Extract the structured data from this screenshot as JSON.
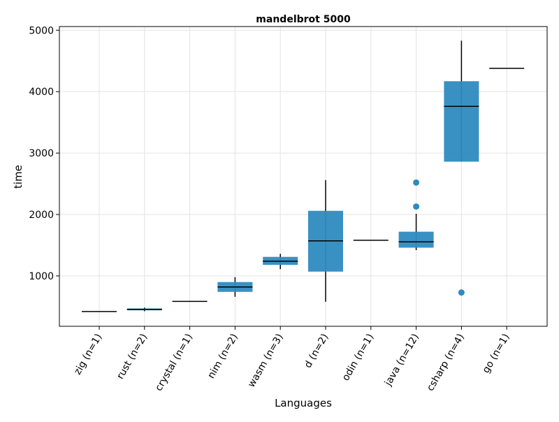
{
  "chart_data": {
    "type": "box",
    "title": "mandelbrot 5000",
    "xlabel": "Languages",
    "ylabel": "time",
    "ylim": [
      180,
      5060
    ],
    "yticks": [
      1000,
      2000,
      3000,
      4000,
      5000
    ],
    "grid": true,
    "box_color": "#2e8bc0",
    "categories": [
      "zig (n=1)",
      "rust (n=2)",
      "crystal (n=1)",
      "nim (n=2)",
      "wasm (n=3)",
      "d (n=2)",
      "odin (n=1)",
      "java (n=12)",
      "csharp (n=4)",
      "go (n=1)"
    ],
    "boxes": [
      {
        "q1": 420,
        "median": 420,
        "q3": 420,
        "whisker_low": 420,
        "whisker_high": 420,
        "outliers": []
      },
      {
        "q1": 440,
        "median": 455,
        "q3": 470,
        "whisker_low": 425,
        "whisker_high": 485,
        "outliers": []
      },
      {
        "q1": 585,
        "median": 585,
        "q3": 585,
        "whisker_low": 585,
        "whisker_high": 585,
        "outliers": []
      },
      {
        "q1": 740,
        "median": 820,
        "q3": 900,
        "whisker_low": 660,
        "whisker_high": 980,
        "outliers": []
      },
      {
        "q1": 1180,
        "median": 1240,
        "q3": 1310,
        "whisker_low": 1110,
        "whisker_high": 1360,
        "outliers": []
      },
      {
        "q1": 1070,
        "median": 1570,
        "q3": 2060,
        "whisker_low": 580,
        "whisker_high": 2560,
        "outliers": []
      },
      {
        "q1": 1580,
        "median": 1580,
        "q3": 1580,
        "whisker_low": 1580,
        "whisker_high": 1580,
        "outliers": []
      },
      {
        "q1": 1460,
        "median": 1555,
        "q3": 1720,
        "whisker_low": 1420,
        "whisker_high": 2010,
        "outliers": [
          2130,
          2520
        ]
      },
      {
        "q1": 2860,
        "median": 3760,
        "q3": 4170,
        "whisker_low": 2860,
        "whisker_high": 4830,
        "outliers": [
          730
        ]
      },
      {
        "q1": 4380,
        "median": 4380,
        "q3": 4380,
        "whisker_low": 4380,
        "whisker_high": 4380,
        "outliers": []
      }
    ]
  }
}
